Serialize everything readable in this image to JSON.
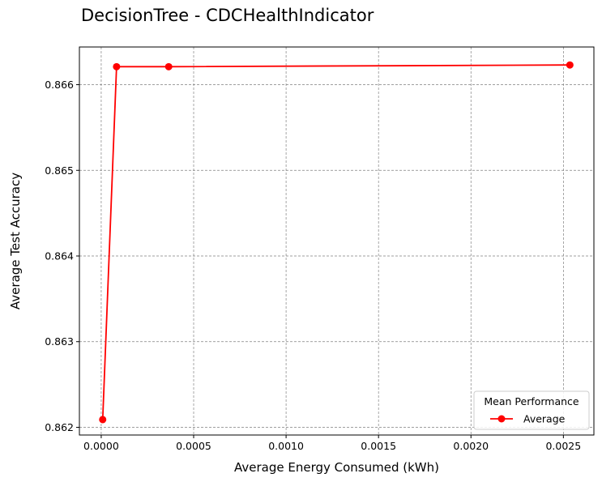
{
  "chart_data": {
    "type": "line",
    "title": "DecisionTree - CDCHealthIndicator",
    "xlabel": "Average Energy Consumed (kWh)",
    "ylabel": "Average Test Accuracy",
    "xlim": [
      -0.000118,
      0.002665
    ],
    "ylim": [
      0.86191,
      0.86644
    ],
    "xticks": [
      0.0,
      0.0005,
      0.001,
      0.0015,
      0.002,
      0.0025
    ],
    "xtick_labels": [
      "0.0000",
      "0.0005",
      "0.0010",
      "0.0015",
      "0.0020",
      "0.0025"
    ],
    "yticks": [
      0.862,
      0.863,
      0.864,
      0.865,
      0.866
    ],
    "ytick_labels": [
      "0.862",
      "0.863",
      "0.864",
      "0.865",
      "0.866"
    ],
    "grid": true,
    "legend": {
      "title": "Mean Performance",
      "location": "lower-right"
    },
    "series": [
      {
        "name": "Average",
        "color": "#ff0000",
        "marker": "circle",
        "x": [
          8e-06,
          8.3e-05,
          0.000365,
          0.002535
        ],
        "y": [
          0.86209,
          0.86621,
          0.86621,
          0.86623
        ]
      }
    ]
  }
}
